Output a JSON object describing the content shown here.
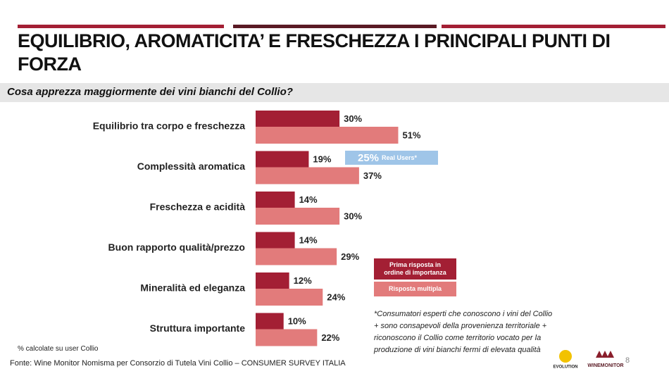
{
  "chart_data": {
    "type": "hbar",
    "title": "EQUILIBRIO, AROMATICITA’ E FRESCHEZZA I PRINCIPALI PUNTI DI FORZA",
    "subtitle": "Cosa apprezza maggiormente dei vini bianchi del Collio?",
    "categories": [
      "Equilibrio tra corpo e freschezza",
      "Complessità aromatica",
      "Freschezza e acidità",
      "Buon rapporto qualità/prezzo",
      "Mineralità ed eleganza",
      "Struttura importante"
    ],
    "series": [
      {
        "name": "Prima risposta in ordine di importanza",
        "color": "#a31f34",
        "values": [
          30,
          19,
          14,
          14,
          12,
          10
        ],
        "value_labels": [
          "30%",
          "19%",
          "14%",
          "14%",
          "12%",
          "10%"
        ]
      },
      {
        "name": "Risposta multipla",
        "color": "#e27b7b",
        "values": [
          51,
          37,
          30,
          29,
          24,
          22
        ],
        "value_labels": [
          "51%",
          "37%",
          "30%",
          "29%",
          "24%",
          "22%"
        ]
      }
    ],
    "annotation": {
      "value": 25,
      "value_label": "25%",
      "text": "Real Users*",
      "color": "#9fc5e8"
    },
    "note": "*Consumatori esperti che conoscono i vini del Collio + sono consapevoli della provenienza territoriale + riconoscono il Collio come territorio vocato per la produzione di vini bianchi fermi di elevata qualità",
    "base_note": "% calcolate su user Collio",
    "source": "Fonte: Wine Monitor Nomisma per Consorzio di Tutela Vini Collio – CONSUMER SURVEY ITALIA",
    "page_number": "8",
    "logos": [
      "EVOLUTION",
      "WINEMONITOR"
    ]
  }
}
